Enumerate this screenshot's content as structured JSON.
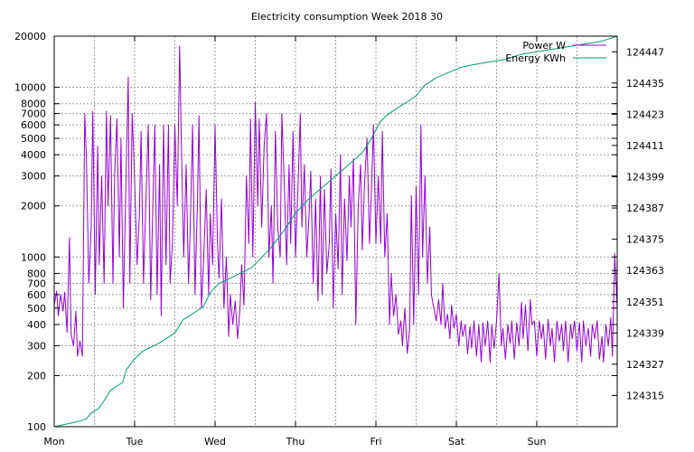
{
  "chart_data": {
    "type": "line",
    "title": "Electricity consumption Week 2018 30",
    "x_tick_labels": [
      "Mon",
      "Tue",
      "Wed",
      "Thu",
      "Fri",
      "Sat",
      "Sun"
    ],
    "x_unit": "days since Monday 00:00",
    "xlim": [
      0,
      7
    ],
    "y_left": {
      "scale": "log",
      "ylim": [
        100,
        20000
      ],
      "ticks": [
        100,
        200,
        300,
        400,
        500,
        600,
        700,
        800,
        1000,
        2000,
        3000,
        4000,
        5000,
        6000,
        7000,
        8000,
        10000,
        20000
      ]
    },
    "y_right": {
      "scale": "linear",
      "ylim": [
        124303,
        124453
      ],
      "ticks": [
        124315,
        124327,
        124339,
        124351,
        124363,
        124375,
        124387,
        124399,
        124411,
        124423,
        124435,
        124447
      ]
    },
    "grid": true,
    "legend_position": "top-right",
    "series": [
      {
        "name": "Power W",
        "axis": "left",
        "color": "#9400d3",
        "points": [
          [
            0.0,
            520
          ],
          [
            0.03,
            630
          ],
          [
            0.05,
            450
          ],
          [
            0.08,
            600
          ],
          [
            0.11,
            480
          ],
          [
            0.13,
            620
          ],
          [
            0.16,
            360
          ],
          [
            0.19,
            1300
          ],
          [
            0.21,
            350
          ],
          [
            0.24,
            300
          ],
          [
            0.27,
            480
          ],
          [
            0.29,
            260
          ],
          [
            0.32,
            320
          ],
          [
            0.35,
            260
          ],
          [
            0.38,
            7000
          ],
          [
            0.4,
            3900
          ],
          [
            0.43,
            700
          ],
          [
            0.46,
            1500
          ],
          [
            0.48,
            7200
          ],
          [
            0.51,
            600
          ],
          [
            0.54,
            4500
          ],
          [
            0.56,
            900
          ],
          [
            0.59,
            3000
          ],
          [
            0.62,
            700
          ],
          [
            0.65,
            7200
          ],
          [
            0.67,
            2000
          ],
          [
            0.7,
            6800
          ],
          [
            0.73,
            700
          ],
          [
            0.75,
            3000
          ],
          [
            0.78,
            6500
          ],
          [
            0.81,
            1000
          ],
          [
            0.83,
            5000
          ],
          [
            0.86,
            500
          ],
          [
            0.89,
            2500
          ],
          [
            0.92,
            11500
          ],
          [
            0.94,
            700
          ],
          [
            0.97,
            7000
          ],
          [
            1.0,
            2800
          ],
          [
            1.03,
            900
          ],
          [
            1.06,
            1800
          ],
          [
            1.08,
            5500
          ],
          [
            1.11,
            700
          ],
          [
            1.14,
            2200
          ],
          [
            1.17,
            6000
          ],
          [
            1.2,
            560
          ],
          [
            1.22,
            1500
          ],
          [
            1.25,
            6000
          ],
          [
            1.28,
            600
          ],
          [
            1.31,
            3500
          ],
          [
            1.33,
            450
          ],
          [
            1.36,
            6000
          ],
          [
            1.39,
            900
          ],
          [
            1.42,
            6000
          ],
          [
            1.44,
            700
          ],
          [
            1.47,
            1200
          ],
          [
            1.5,
            6000
          ],
          [
            1.53,
            2000
          ],
          [
            1.56,
            17500
          ],
          [
            1.58,
            5000
          ],
          [
            1.61,
            1000
          ],
          [
            1.64,
            3500
          ],
          [
            1.67,
            700
          ],
          [
            1.69,
            1400
          ],
          [
            1.72,
            6000
          ],
          [
            1.75,
            600
          ],
          [
            1.78,
            2000
          ],
          [
            1.8,
            6800
          ],
          [
            1.83,
            500
          ],
          [
            1.86,
            1000
          ],
          [
            1.89,
            2500
          ],
          [
            1.92,
            600
          ],
          [
            1.94,
            1800
          ],
          [
            1.97,
            900
          ],
          [
            2.0,
            6000
          ],
          [
            2.03,
            1200
          ],
          [
            2.05,
            750
          ],
          [
            2.08,
            2200
          ],
          [
            2.11,
            500
          ],
          [
            2.14,
            1000
          ],
          [
            2.17,
            340
          ],
          [
            2.19,
            600
          ],
          [
            2.22,
            400
          ],
          [
            2.25,
            550
          ],
          [
            2.28,
            330
          ],
          [
            2.31,
            500
          ],
          [
            2.33,
            900
          ],
          [
            2.36,
            520
          ],
          [
            2.39,
            3000
          ],
          [
            2.42,
            1200
          ],
          [
            2.44,
            6500
          ],
          [
            2.47,
            1000
          ],
          [
            2.5,
            8200
          ],
          [
            2.53,
            2000
          ],
          [
            2.55,
            6500
          ],
          [
            2.58,
            1500
          ],
          [
            2.61,
            4500
          ],
          [
            2.64,
            7000
          ],
          [
            2.67,
            1000
          ],
          [
            2.7,
            2000
          ],
          [
            2.72,
            700
          ],
          [
            2.75,
            5500
          ],
          [
            2.78,
            1500
          ],
          [
            2.81,
            1000
          ],
          [
            2.83,
            7000
          ],
          [
            2.86,
            2800
          ],
          [
            2.89,
            900
          ],
          [
            2.92,
            3500
          ],
          [
            2.94,
            1200
          ],
          [
            2.97,
            5500
          ],
          [
            3.0,
            1000
          ],
          [
            3.03,
            2500
          ],
          [
            3.06,
            7000
          ],
          [
            3.08,
            1500
          ],
          [
            3.11,
            3500
          ],
          [
            3.14,
            1000
          ],
          [
            3.17,
            1800
          ],
          [
            3.19,
            3200
          ],
          [
            3.22,
            700
          ],
          [
            3.25,
            2200
          ],
          [
            3.28,
            550
          ],
          [
            3.31,
            3000
          ],
          [
            3.33,
            600
          ],
          [
            3.36,
            2500
          ],
          [
            3.39,
            800
          ],
          [
            3.42,
            1200
          ],
          [
            3.44,
            3300
          ],
          [
            3.47,
            500
          ],
          [
            3.5,
            1800
          ],
          [
            3.53,
            850
          ],
          [
            3.56,
            4000
          ],
          [
            3.58,
            600
          ],
          [
            3.61,
            2200
          ],
          [
            3.64,
            950
          ],
          [
            3.67,
            3000
          ],
          [
            3.69,
            1500
          ],
          [
            3.72,
            3800
          ],
          [
            3.75,
            400
          ],
          [
            3.78,
            2000
          ],
          [
            3.81,
            3500
          ],
          [
            3.83,
            1100
          ],
          [
            3.86,
            2800
          ],
          [
            3.89,
            5000
          ],
          [
            3.92,
            1200
          ],
          [
            3.94,
            2200
          ],
          [
            3.97,
            6000
          ],
          [
            4.0,
            1200
          ],
          [
            4.03,
            3000
          ],
          [
            4.06,
            1200
          ],
          [
            4.08,
            5500
          ],
          [
            4.11,
            1000
          ],
          [
            4.14,
            1800
          ],
          [
            4.17,
            400
          ],
          [
            4.19,
            800
          ],
          [
            4.22,
            450
          ],
          [
            4.25,
            600
          ],
          [
            4.28,
            350
          ],
          [
            4.31,
            420
          ],
          [
            4.33,
            300
          ],
          [
            4.36,
            500
          ],
          [
            4.39,
            270
          ],
          [
            4.42,
            380
          ],
          [
            4.44,
            2300
          ],
          [
            4.47,
            400
          ],
          [
            4.5,
            2600
          ],
          [
            4.53,
            600
          ],
          [
            4.56,
            6000
          ],
          [
            4.58,
            1000
          ],
          [
            4.61,
            3000
          ],
          [
            4.64,
            700
          ],
          [
            4.67,
            1500
          ],
          [
            4.69,
            600
          ],
          [
            4.72,
            500
          ],
          [
            4.75,
            420
          ],
          [
            4.78,
            560
          ],
          [
            4.81,
            400
          ],
          [
            4.83,
            700
          ],
          [
            4.86,
            380
          ],
          [
            4.89,
            460
          ],
          [
            4.92,
            330
          ],
          [
            4.94,
            520
          ],
          [
            4.97,
            380
          ],
          [
            5.0,
            460
          ],
          [
            5.03,
            300
          ],
          [
            5.06,
            420
          ],
          [
            5.08,
            340
          ],
          [
            5.11,
            400
          ],
          [
            5.14,
            270
          ],
          [
            5.17,
            390
          ],
          [
            5.19,
            290
          ],
          [
            5.22,
            420
          ],
          [
            5.25,
            260
          ],
          [
            5.28,
            400
          ],
          [
            5.31,
            240
          ],
          [
            5.33,
            410
          ],
          [
            5.36,
            300
          ],
          [
            5.39,
            420
          ],
          [
            5.42,
            240
          ],
          [
            5.44,
            400
          ],
          [
            5.47,
            290
          ],
          [
            5.5,
            420
          ],
          [
            5.53,
            800
          ],
          [
            5.56,
            300
          ],
          [
            5.58,
            380
          ],
          [
            5.61,
            250
          ],
          [
            5.64,
            400
          ],
          [
            5.67,
            310
          ],
          [
            5.69,
            420
          ],
          [
            5.72,
            250
          ],
          [
            5.75,
            410
          ],
          [
            5.78,
            300
          ],
          [
            5.81,
            540
          ],
          [
            5.83,
            330
          ],
          [
            5.86,
            520
          ],
          [
            5.89,
            280
          ],
          [
            5.92,
            560
          ],
          [
            5.94,
            400
          ],
          [
            5.97,
            420
          ],
          [
            6.0,
            260
          ],
          [
            6.03,
            420
          ],
          [
            6.06,
            330
          ],
          [
            6.08,
            400
          ],
          [
            6.11,
            250
          ],
          [
            6.14,
            430
          ],
          [
            6.17,
            300
          ],
          [
            6.19,
            380
          ],
          [
            6.22,
            240
          ],
          [
            6.25,
            420
          ],
          [
            6.28,
            320
          ],
          [
            6.31,
            400
          ],
          [
            6.33,
            280
          ],
          [
            6.36,
            420
          ],
          [
            6.39,
            240
          ],
          [
            6.42,
            400
          ],
          [
            6.44,
            330
          ],
          [
            6.47,
            420
          ],
          [
            6.5,
            280
          ],
          [
            6.53,
            410
          ],
          [
            6.56,
            240
          ],
          [
            6.58,
            420
          ],
          [
            6.61,
            300
          ],
          [
            6.64,
            380
          ],
          [
            6.67,
            260
          ],
          [
            6.69,
            400
          ],
          [
            6.72,
            330
          ],
          [
            6.75,
            420
          ],
          [
            6.78,
            250
          ],
          [
            6.81,
            340
          ],
          [
            6.83,
            240
          ],
          [
            6.86,
            400
          ],
          [
            6.89,
            300
          ],
          [
            6.92,
            440
          ],
          [
            6.94,
            260
          ],
          [
            6.97,
            1050
          ],
          [
            7.0,
            500
          ]
        ]
      },
      {
        "name": "Energy KWh",
        "axis": "right",
        "color": "#009e73",
        "points": [
          [
            0.0,
            124303
          ],
          [
            0.15,
            124304
          ],
          [
            0.3,
            124305
          ],
          [
            0.4,
            124306
          ],
          [
            0.45,
            124308
          ],
          [
            0.55,
            124310
          ],
          [
            0.6,
            124312
          ],
          [
            0.7,
            124317
          ],
          [
            0.8,
            124319
          ],
          [
            0.85,
            124320
          ],
          [
            0.9,
            124325
          ],
          [
            1.0,
            124329
          ],
          [
            1.1,
            124332
          ],
          [
            1.3,
            124335
          ],
          [
            1.5,
            124339
          ],
          [
            1.6,
            124344
          ],
          [
            1.7,
            124346
          ],
          [
            1.85,
            124349
          ],
          [
            1.95,
            124355
          ],
          [
            2.05,
            124358
          ],
          [
            2.25,
            124361
          ],
          [
            2.45,
            124364
          ],
          [
            2.55,
            124367
          ],
          [
            2.7,
            124372
          ],
          [
            2.85,
            124378
          ],
          [
            3.0,
            124385
          ],
          [
            3.15,
            124390
          ],
          [
            3.3,
            124394
          ],
          [
            3.45,
            124398
          ],
          [
            3.6,
            124402
          ],
          [
            3.75,
            124406
          ],
          [
            3.85,
            124409
          ],
          [
            3.95,
            124414
          ],
          [
            4.05,
            124420
          ],
          [
            4.15,
            124423
          ],
          [
            4.25,
            124425
          ],
          [
            4.4,
            124428
          ],
          [
            4.5,
            124430
          ],
          [
            4.6,
            124434
          ],
          [
            4.75,
            124437
          ],
          [
            4.9,
            124439
          ],
          [
            5.05,
            124441
          ],
          [
            5.2,
            124442
          ],
          [
            5.4,
            124443
          ],
          [
            5.6,
            124444
          ],
          [
            5.8,
            124446
          ],
          [
            6.0,
            124447
          ],
          [
            6.2,
            124448
          ],
          [
            6.4,
            124449
          ],
          [
            6.6,
            124450
          ],
          [
            6.8,
            124451
          ],
          [
            7.0,
            124453
          ]
        ]
      }
    ]
  }
}
